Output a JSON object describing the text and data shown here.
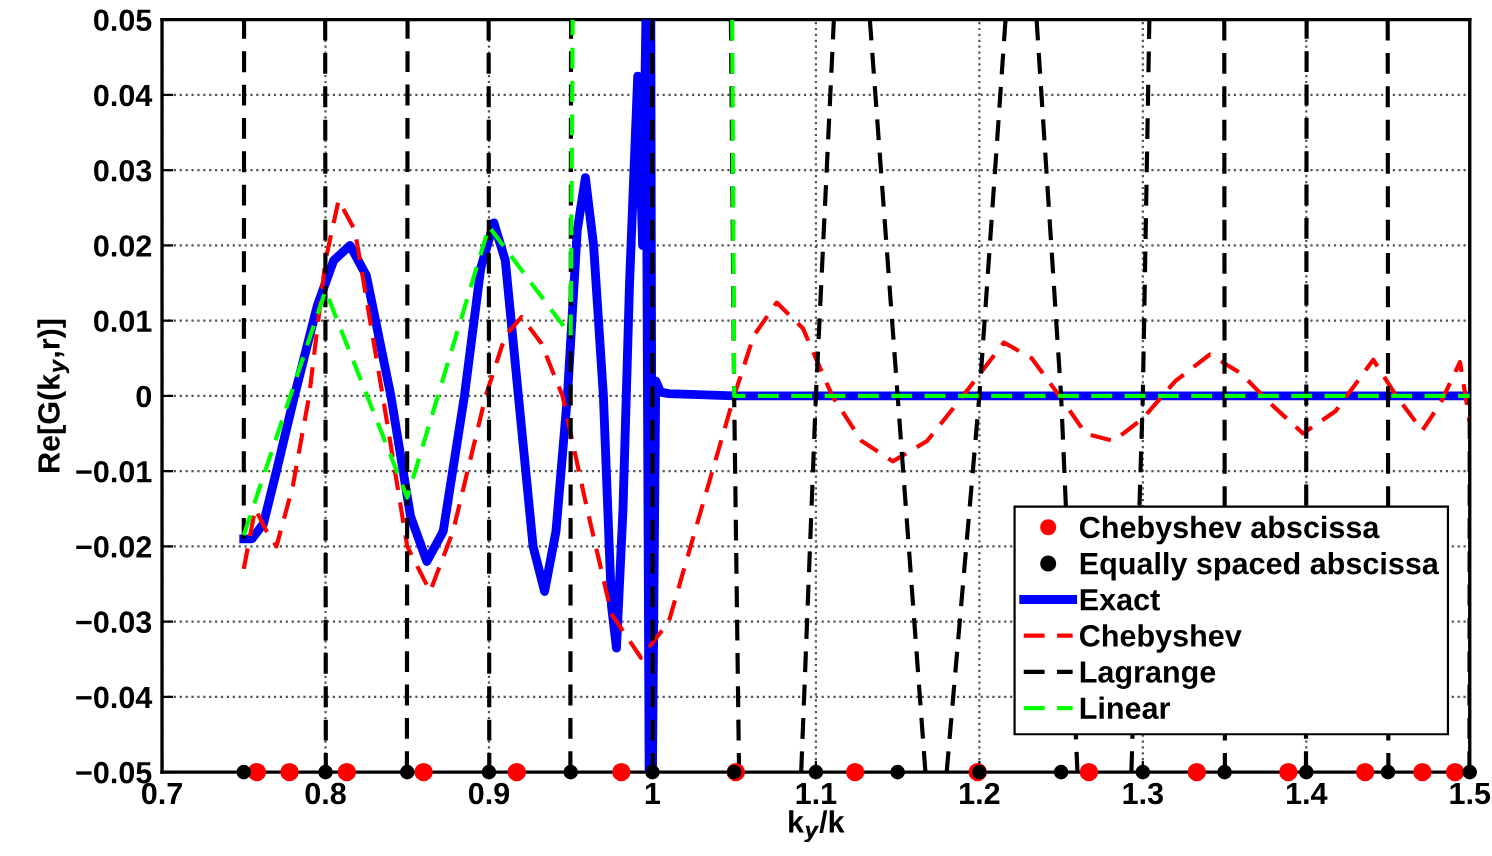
{
  "chart_data": {
    "type": "line",
    "xlabel": "k$_{y}$/k",
    "ylabel": "Re[G(k$_{y}$,r)]",
    "xlim": [
      0.7,
      1.5
    ],
    "ylim": [
      -0.05,
      0.05
    ],
    "xticks": [
      0.7,
      0.8,
      0.9,
      1,
      1.1,
      1.2,
      1.3,
      1.4,
      1.5
    ],
    "yticks": [
      {
        "value": -0.05,
        "label": "−0.05"
      },
      {
        "value": -0.04,
        "label": "−0.04"
      },
      {
        "value": -0.03,
        "label": "−0.03"
      },
      {
        "value": -0.02,
        "label": "−0.02"
      },
      {
        "value": -0.01,
        "label": "−0.01"
      },
      0,
      0.01,
      0.02,
      0.03,
      0.04,
      0.05
    ],
    "grid": true,
    "legend": "bottom right",
    "series": [
      {
        "name": "Chebyshev abscissa",
        "type": "scatter",
        "marker": "circle",
        "color": "#ff0000",
        "x": [
          0.758,
          0.778,
          0.813,
          0.86,
          0.917,
          0.981,
          1.051,
          1.124,
          1.199,
          1.267,
          1.333,
          1.389,
          1.436,
          1.471,
          1.491
        ],
        "values": [
          -0.05,
          -0.05,
          -0.05,
          -0.05,
          -0.05,
          -0.05,
          -0.05,
          -0.05,
          -0.05,
          -0.05,
          -0.05,
          -0.05,
          -0.05,
          -0.05,
          -0.05
        ]
      },
      {
        "name": "Equally spaced abscissa",
        "type": "scatter",
        "marker": "circle",
        "color": "#000000",
        "x": [
          0.75,
          0.8,
          0.85,
          0.9,
          0.95,
          1.0,
          1.05,
          1.1,
          1.15,
          1.2,
          1.25,
          1.3,
          1.35,
          1.4,
          1.45,
          1.5
        ],
        "values": [
          -0.05,
          -0.05,
          -0.05,
          -0.05,
          -0.05,
          -0.05,
          -0.05,
          -0.05,
          -0.05,
          -0.05,
          -0.05,
          -0.05,
          -0.05,
          -0.05,
          -0.05,
          -0.05
        ]
      },
      {
        "name": "Exact",
        "line_style": "solid",
        "color": "#0000ff",
        "x": [
          0.75,
          0.755,
          0.762,
          0.77,
          0.781,
          0.795,
          0.805,
          0.815,
          0.825,
          0.84,
          0.852,
          0.862,
          0.872,
          0.885,
          0.895,
          0.903,
          0.91,
          0.918,
          0.927,
          0.934,
          0.941,
          0.948,
          0.954,
          0.959,
          0.964,
          0.97,
          0.975,
          0.978,
          0.982,
          0.986,
          0.991,
          0.994,
          0.996,
          0.998,
          0.999,
          1.0,
          1.002,
          1.005,
          1.01,
          1.05,
          1.5
        ],
        "values": [
          -0.019,
          -0.019,
          -0.017,
          -0.01,
          0.0,
          0.012,
          0.018,
          0.02,
          0.016,
          0.0,
          -0.016,
          -0.022,
          -0.018,
          0.0,
          0.017,
          0.023,
          0.018,
          0.0,
          -0.02,
          -0.026,
          -0.018,
          0.0,
          0.022,
          0.029,
          0.02,
          0.0,
          -0.028,
          -0.0335,
          -0.015,
          0.015,
          0.0425,
          0.02,
          0.05,
          -0.05,
          0.05,
          -0.05,
          0.002,
          0.0005,
          0.0003,
          0.0,
          0.0
        ]
      },
      {
        "name": "Chebyshev",
        "line_style": "dashed",
        "color": "#ff0000",
        "x": [
          0.75,
          0.757,
          0.764,
          0.77,
          0.78,
          0.79,
          0.8,
          0.808,
          0.818,
          0.835,
          0.85,
          0.864,
          0.878,
          0.898,
          0.91,
          0.92,
          0.932,
          0.945,
          0.96,
          0.975,
          0.993,
          1.01,
          1.03,
          1.05,
          1.062,
          1.076,
          1.092,
          1.11,
          1.128,
          1.147,
          1.168,
          1.19,
          1.215,
          1.232,
          1.249,
          1.265,
          1.282,
          1.3,
          1.32,
          1.341,
          1.36,
          1.378,
          1.398,
          1.418,
          1.441,
          1.455,
          1.471,
          1.482,
          1.494,
          1.5
        ],
        "values": [
          -0.023,
          -0.015,
          -0.018,
          -0.02,
          -0.012,
          0.0,
          0.018,
          0.026,
          0.022,
          0.0,
          -0.02,
          -0.026,
          -0.018,
          0.0,
          0.008,
          0.0105,
          0.007,
          0.0,
          -0.015,
          -0.029,
          -0.0348,
          -0.03,
          -0.015,
          0.0,
          0.008,
          0.0124,
          0.009,
          0.0,
          -0.006,
          -0.0087,
          -0.006,
          0.0,
          0.0071,
          0.005,
          0.0,
          -0.005,
          -0.006,
          -0.003,
          0.002,
          0.0055,
          0.003,
          -0.001,
          -0.005,
          -0.002,
          0.0048,
          0.0,
          -0.0046,
          -0.001,
          0.0045,
          -0.0035
        ]
      },
      {
        "name": "Lagrange",
        "line_style": "dashed",
        "color": "#000000",
        "x": [
          0.75,
          0.7502,
          null,
          0.7998,
          0.8002,
          null,
          0.8498,
          0.8502,
          null,
          0.8998,
          0.9002,
          null,
          0.9498,
          0.9502,
          null,
          0.9998,
          1.0002,
          null,
          1.048,
          1.05,
          1.053,
          null,
          1.091,
          1.1,
          1.111,
          null,
          1.133,
          1.15,
          1.167,
          null,
          1.18,
          1.2,
          1.216,
          null,
          1.235,
          1.25,
          1.26,
          null,
          1.293,
          1.3,
          1.304,
          null,
          1.3498,
          1.3502,
          null,
          1.3998,
          1.4002,
          null,
          1.4498,
          1.4502,
          null,
          1.4998,
          1.5
        ],
        "values": [
          -0.019,
          0.05,
          null,
          0.05,
          -0.05,
          null,
          -0.05,
          0.05,
          null,
          0.05,
          -0.05,
          null,
          -0.05,
          0.05,
          null,
          0.05,
          -0.05,
          null,
          0.05,
          0.0,
          -0.05,
          null,
          -0.05,
          0.0,
          0.05,
          null,
          0.05,
          0.0,
          -0.05,
          null,
          -0.05,
          0.0,
          0.05,
          null,
          0.05,
          0.0,
          -0.05,
          null,
          -0.05,
          0.0,
          0.05,
          null,
          0.05,
          -0.05,
          null,
          -0.05,
          0.05,
          null,
          0.05,
          -0.05,
          null,
          -0.05,
          0.0
        ]
      },
      {
        "name": "Linear",
        "line_style": "dashed",
        "color": "#00ff00",
        "x": [
          0.75,
          0.8,
          0.85,
          0.9,
          0.95,
          0.9512,
          null,
          1.0488,
          1.05,
          1.5
        ],
        "values": [
          -0.0185,
          0.014,
          -0.0135,
          0.0225,
          0.008,
          0.05,
          null,
          0.05,
          0.0,
          0.0
        ]
      }
    ]
  }
}
